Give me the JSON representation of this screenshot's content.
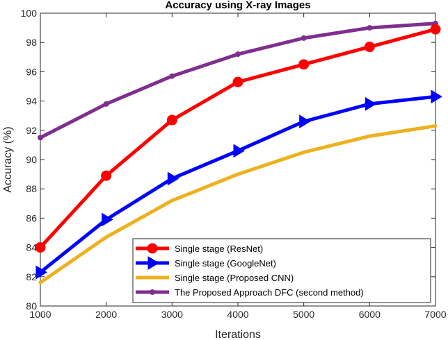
{
  "chart_data": {
    "type": "line",
    "title": "Accuracy using X-ray Images",
    "xlabel": "Iterations",
    "ylabel": "Accuracy (%)",
    "xlim": [
      1000,
      7000
    ],
    "ylim": [
      80,
      100
    ],
    "xticks": [
      1000,
      2000,
      3000,
      4000,
      5000,
      6000,
      7000
    ],
    "yticks": [
      80,
      82,
      84,
      86,
      88,
      90,
      92,
      94,
      96,
      98,
      100
    ],
    "grid": false,
    "legend_position": "bottom-right",
    "x": [
      1000,
      2000,
      3000,
      4000,
      5000,
      6000,
      7000
    ],
    "series": [
      {
        "name": "Single stage (ResNet)",
        "values": [
          84.0,
          88.9,
          92.7,
          95.3,
          96.5,
          97.7,
          98.9
        ],
        "color": "#ff0000",
        "marker": "circle"
      },
      {
        "name": "Single stage (GoogleNet)",
        "values": [
          82.3,
          85.9,
          88.7,
          90.6,
          92.6,
          93.8,
          94.3
        ],
        "color": "#0000ff",
        "marker": "triangle-right"
      },
      {
        "name": "Single stage (Proposed CNN)",
        "values": [
          81.6,
          84.7,
          87.2,
          89.0,
          90.5,
          91.6,
          92.3
        ],
        "color": "#edb120",
        "marker": "none"
      },
      {
        "name": "The Proposed Approach DFC (second method)",
        "values": [
          91.5,
          93.8,
          95.7,
          97.2,
          98.3,
          99.0,
          99.3
        ],
        "color": "#7e2f8e",
        "marker": "dot"
      }
    ]
  }
}
